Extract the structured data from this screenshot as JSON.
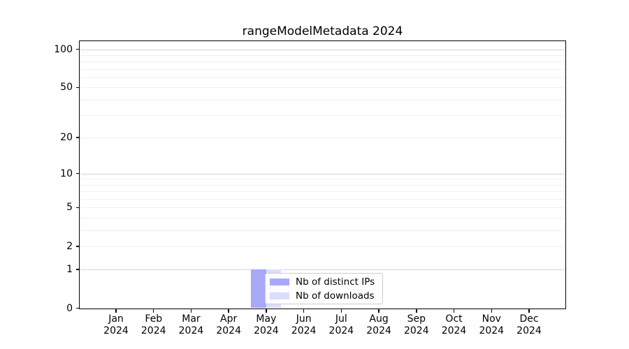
{
  "chart_data": {
    "type": "bar",
    "title": "rangeModelMetadata 2024",
    "categories": [
      "Jan",
      "Feb",
      "Mar",
      "Apr",
      "May",
      "Jun",
      "Jul",
      "Aug",
      "Sep",
      "Oct",
      "Nov",
      "Dec"
    ],
    "x_sublabel": "2024",
    "series": [
      {
        "name": "Nb of distinct IPs",
        "color": "#a8a8f8",
        "values": [
          0,
          0,
          0,
          0,
          1,
          0,
          0,
          0,
          0,
          0,
          0,
          0
        ]
      },
      {
        "name": "Nb of downloads",
        "color": "#dcdcfb",
        "values": [
          0,
          0,
          0,
          0,
          1,
          0,
          0,
          0,
          0,
          0,
          0,
          0
        ]
      }
    ],
    "y_axis": {
      "scale": "log1p",
      "tick_values": [
        0,
        1,
        2,
        5,
        10,
        20,
        50,
        100
      ],
      "range": [
        0,
        116
      ]
    },
    "grid": "horizontal major+minor",
    "legend": {
      "position": "lower center"
    }
  }
}
